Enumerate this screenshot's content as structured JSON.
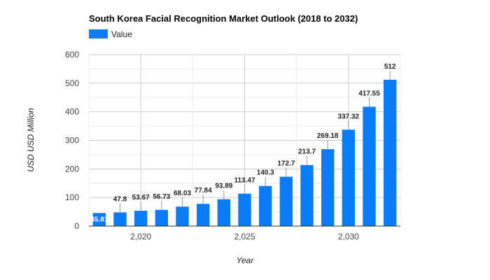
{
  "colors": {
    "bar": "#0a7cf7",
    "grid_major": "#cccccc",
    "grid_minor": "#ececec",
    "baseline": "#333333",
    "leader": "#999999"
  },
  "legend": {
    "label": "Value",
    "icon": "legend-swatch"
  },
  "chart_data": {
    "type": "bar",
    "title": "South Korea Facial Recognition Market Outlook (2018 to 2032)",
    "xlabel": "Year",
    "ylabel": "USD USD Million",
    "x": [
      2018,
      2019,
      2020,
      2021,
      2022,
      2023,
      2024,
      2025,
      2026,
      2027,
      2028,
      2029,
      2030,
      2031,
      2032
    ],
    "values": [
      45.81,
      47.8,
      53.67,
      56.73,
      68.03,
      77.84,
      93.89,
      113.47,
      140.3,
      172.7,
      213.7,
      269.18,
      337.32,
      417.55,
      512
    ],
    "data_labels": [
      "45.81",
      "47.8",
      "53.67",
      "56.73",
      "68.03",
      "77.84",
      "93.89",
      "113.47",
      "140.3",
      "172.7",
      "213.7",
      "269.18",
      "337.32",
      "417.55",
      "512"
    ],
    "ylim": [
      0,
      600
    ],
    "y_ticks": [
      0,
      100,
      200,
      300,
      400,
      500,
      600
    ],
    "y_tick_labels": [
      "0",
      "100",
      "200",
      "300",
      "400",
      "500",
      "600"
    ],
    "x_ticks": [
      2020,
      2025,
      2030
    ],
    "x_tick_labels": [
      "2,020",
      "2,025",
      "2,030"
    ],
    "xlim": [
      2017.5,
      2032.5
    ],
    "grid": true,
    "legend_position": "top-left"
  }
}
